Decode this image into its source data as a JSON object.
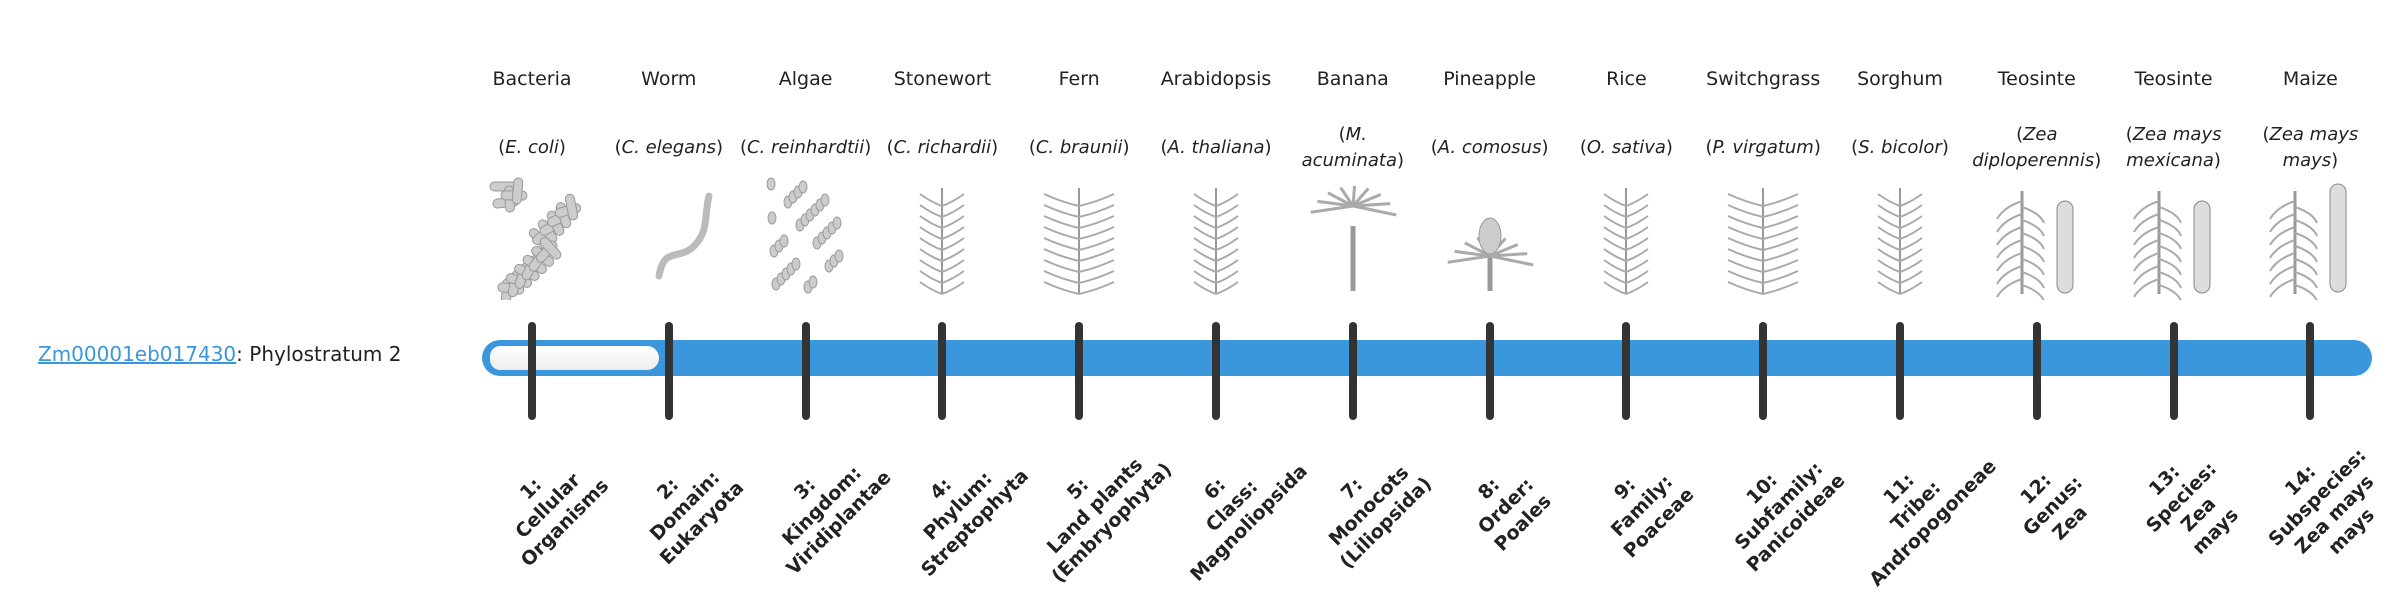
{
  "gene": {
    "id": "Zm00001eb017430",
    "separator": ":",
    "label": " Phylostratum 2"
  },
  "phylostratum_value": 2,
  "colors": {
    "bar": "#3a97dc",
    "tick": "#333333",
    "link": "#3a97dc"
  },
  "columns": [
    {
      "name": "Bacteria",
      "species": "E. coli",
      "icon": "bacteria-image",
      "stratum": [
        "1:",
        "Cellular",
        "Organisms"
      ]
    },
    {
      "name": "Worm",
      "species": "C. elegans",
      "icon": "worm-image",
      "stratum": [
        "2:",
        "Domain:",
        "Eukaryota"
      ]
    },
    {
      "name": "Algae",
      "species": "C. reinhardtii",
      "icon": "algae-image",
      "stratum": [
        "3:",
        "Kingdom:",
        "Viridiplantae"
      ]
    },
    {
      "name": "Stonewort",
      "species": "C. richardii",
      "icon": "stonewort-image",
      "stratum": [
        "4:",
        "Phylum:",
        "Streptophyta"
      ]
    },
    {
      "name": "Fern",
      "species": "C. braunii",
      "icon": "fern-image",
      "stratum": [
        "5:",
        "Land plants",
        "(Embryophyta)"
      ]
    },
    {
      "name": "Arabidopsis",
      "species": "A. thaliana",
      "icon": "arabidopsis-image",
      "stratum": [
        "6:",
        "Class:",
        "Magnoliopsida"
      ]
    },
    {
      "name": "Banana",
      "species": "M. acuminata",
      "icon": "banana-image",
      "stratum": [
        "7:",
        "Monocots",
        "(Liliopsida)"
      ]
    },
    {
      "name": "Pineapple",
      "species": "A. comosus",
      "icon": "pineapple-image",
      "stratum": [
        "8:",
        "Order:",
        "Poales"
      ]
    },
    {
      "name": "Rice",
      "species": "O. sativa",
      "icon": "rice-image",
      "stratum": [
        "9:",
        "Family:",
        "Poaceae"
      ]
    },
    {
      "name": "Switchgrass",
      "species": "P. virgatum",
      "icon": "switchgrass-image",
      "stratum": [
        "10:",
        "Subfamily:",
        "Panicoideae"
      ]
    },
    {
      "name": "Sorghum",
      "species": "S. bicolor",
      "icon": "sorghum-image",
      "stratum": [
        "11:",
        "Tribe:",
        "Andropogoneae"
      ]
    },
    {
      "name": "Teosinte",
      "species": "Zea diploperennis",
      "icon": "teosinte-image",
      "stratum": [
        "12:",
        "Genus:",
        "Zea"
      ]
    },
    {
      "name": "Teosinte",
      "species": "Zea mays mexicana",
      "icon": "teosinte-mexicana-image",
      "stratum": [
        "13:",
        "Species:",
        "Zea",
        "mays"
      ]
    },
    {
      "name": "Maize",
      "species": "Zea mays mays",
      "icon": "maize-image",
      "stratum": [
        "14:",
        "Subspecies:",
        "Zea mays",
        "mays"
      ]
    }
  ]
}
